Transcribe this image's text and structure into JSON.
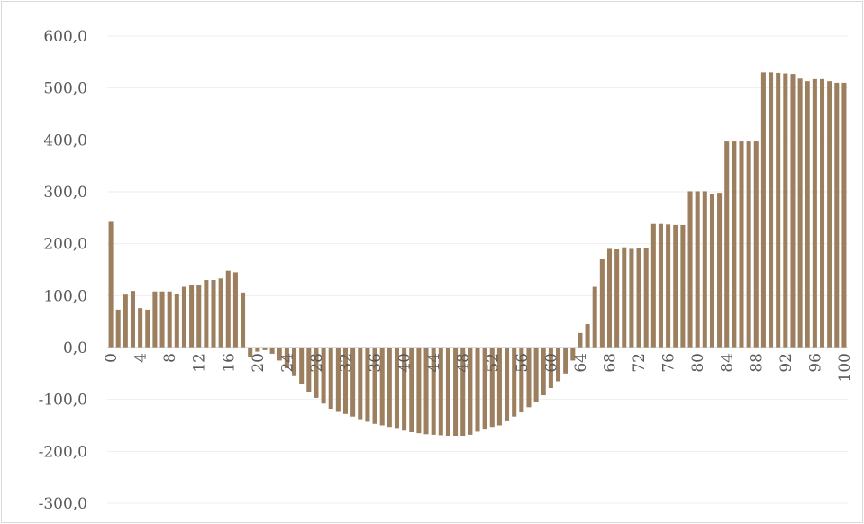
{
  "chart_data": {
    "type": "bar",
    "title": "",
    "xlabel": "",
    "ylabel": "",
    "ylim": [
      -300,
      600
    ],
    "grid": true,
    "legend": "none",
    "bar_color": "#9c7f5e",
    "gridline_color": "#eeeeee",
    "axis_color": "#bfbfbf",
    "text_color": "#595959",
    "y_ticks": [
      600,
      500,
      400,
      300,
      200,
      100,
      0,
      -100,
      -200,
      -300
    ],
    "y_tick_labels": [
      "600,0",
      "500,0",
      "400,0",
      "300,0",
      "200,0",
      "100,0",
      "0,0",
      "-100,0",
      "-200,0",
      "-300,0"
    ],
    "x_tick_labels": [
      "0",
      "4",
      "8",
      "12",
      "16",
      "20",
      "24",
      "28",
      "32",
      "36",
      "40",
      "44",
      "48",
      "52",
      "56",
      "60",
      "64",
      "68",
      "72",
      "76",
      "80",
      "84",
      "88",
      "92",
      "96",
      "100"
    ],
    "x_tick_step": 4,
    "categories": [
      0,
      1,
      2,
      3,
      4,
      5,
      6,
      7,
      8,
      9,
      10,
      11,
      12,
      13,
      14,
      15,
      16,
      17,
      18,
      19,
      20,
      21,
      22,
      23,
      24,
      25,
      26,
      27,
      28,
      29,
      30,
      31,
      32,
      33,
      34,
      35,
      36,
      37,
      38,
      39,
      40,
      41,
      42,
      43,
      44,
      45,
      46,
      47,
      48,
      49,
      50,
      51,
      52,
      53,
      54,
      55,
      56,
      57,
      58,
      59,
      60,
      61,
      62,
      63,
      64,
      65,
      66,
      67,
      68,
      69,
      70,
      71,
      72,
      73,
      74,
      75,
      76,
      77,
      78,
      79,
      80,
      81,
      82,
      83,
      84,
      85,
      86,
      87,
      88,
      89,
      90,
      91,
      92,
      93,
      94,
      95,
      96,
      97,
      98,
      99,
      100
    ],
    "values": [
      242,
      73,
      102,
      109,
      76,
      73,
      108,
      108,
      108,
      103,
      117,
      120,
      120,
      130,
      130,
      133,
      148,
      145,
      106,
      -18,
      -8,
      -5,
      -12,
      -25,
      -40,
      -55,
      -70,
      -85,
      -97,
      -108,
      -118,
      -124,
      -128,
      -133,
      -138,
      -143,
      -147,
      -150,
      -153,
      -155,
      -160,
      -163,
      -165,
      -167,
      -168,
      -169,
      -170,
      -170,
      -170,
      -168,
      -162,
      -158,
      -153,
      -150,
      -142,
      -133,
      -125,
      -115,
      -105,
      -92,
      -78,
      -65,
      -50,
      -25,
      28,
      45,
      117,
      170,
      190,
      189,
      193,
      190,
      192,
      192,
      238,
      238,
      237,
      236,
      236,
      301,
      301,
      301,
      295,
      298,
      397,
      397,
      397,
      397,
      397,
      530,
      530,
      529,
      528,
      527,
      518,
      513,
      517,
      517,
      513,
      510,
      510
    ]
  }
}
